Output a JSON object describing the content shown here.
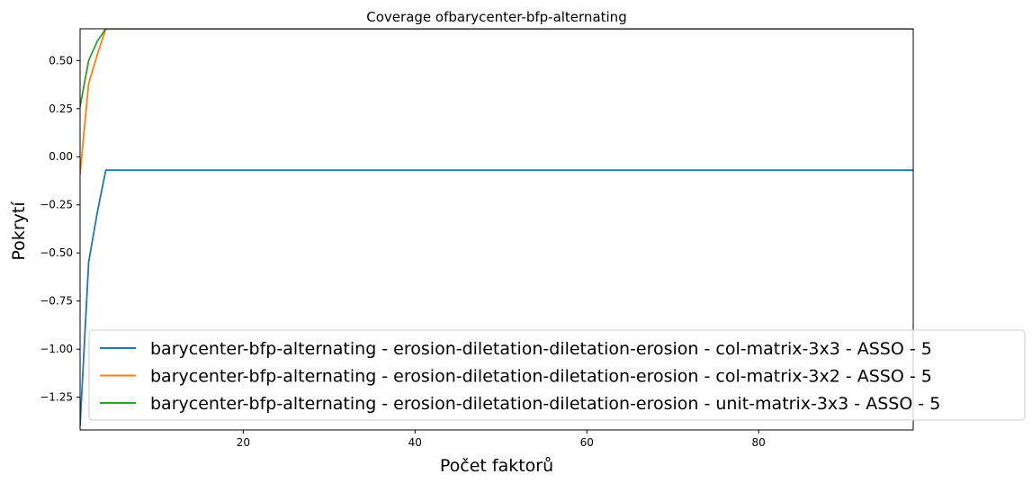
{
  "chart_data": {
    "type": "line",
    "title": "Coverage ofbarycenter-bfp-alternating",
    "xlabel": "Počet faktorů",
    "ylabel": "Pokrytí",
    "xlim": [
      1,
      98
    ],
    "ylim": [
      -1.42,
      0.665
    ],
    "xticks": [
      20,
      40,
      60,
      80
    ],
    "xtick_labels": [
      "20",
      "40",
      "60",
      "80"
    ],
    "yticks": [
      0.5,
      0.25,
      0.0,
      -0.25,
      -0.5,
      -0.75,
      -1.0,
      -1.25
    ],
    "ytick_labels": [
      "0.50",
      "0.25",
      "0.00",
      "−0.25",
      "−0.50",
      "−0.75",
      "−1.00",
      "−1.25"
    ],
    "grid": false,
    "legend_position": "lower-right",
    "series": [
      {
        "name": "barycenter-bfp-alternating - erosion-diletation-diletation-erosion - col-matrix-3x3 - ASSO - 5",
        "color": "#1f77b4",
        "x": [
          1,
          2,
          3,
          4,
          98
        ],
        "y": [
          -1.4,
          -0.55,
          -0.29,
          -0.07,
          -0.07
        ]
      },
      {
        "name": "barycenter-bfp-alternating - erosion-diletation-diletation-erosion - col-matrix-3x2 - ASSO - 5",
        "color": "#ff7f0e",
        "x": [
          1,
          2,
          3,
          4,
          98
        ],
        "y": [
          -0.09,
          0.38,
          0.53,
          0.665,
          0.665
        ]
      },
      {
        "name": "barycenter-bfp-alternating - erosion-diletation-diletation-erosion - unit-matrix-3x3 - ASSO - 5",
        "color": "#2ca02c",
        "x": [
          1,
          2,
          3,
          4,
          98
        ],
        "y": [
          0.26,
          0.5,
          0.6,
          0.665,
          0.665
        ]
      }
    ]
  }
}
